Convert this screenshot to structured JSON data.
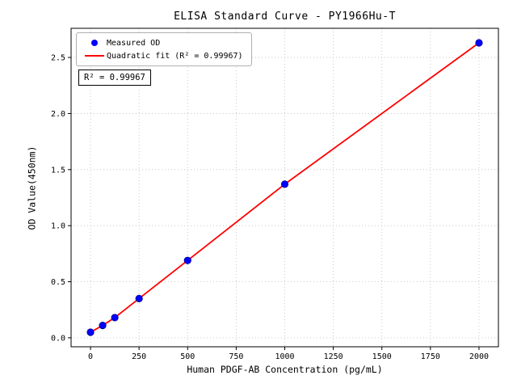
{
  "figure": {
    "title": "ELISA Standard Curve - PY1966Hu-T",
    "xlabel": "Human PDGF-AB Concentration (pg/mL)",
    "ylabel": "OD Value(450nm)",
    "legend": {
      "measured": "Measured OD",
      "fit": "Quadratic fit (R² = 0.99967)"
    },
    "annotation": "R² = 0.99967",
    "colors": {
      "point": "#0000ff",
      "point_edge": "#00008b",
      "line": "#ff0000",
      "grid": "#bdbdbd",
      "axis": "#000000"
    }
  },
  "chart_data": {
    "type": "scatter",
    "title": "ELISA Standard Curve - PY1966Hu-T",
    "xlabel": "Human PDGF-AB Concentration (pg/mL)",
    "ylabel": "OD Value(450nm)",
    "x": [
      0,
      62.5,
      125,
      250,
      500,
      1000,
      2000
    ],
    "y": [
      0.05,
      0.11,
      0.18,
      0.35,
      0.69,
      1.37,
      2.63
    ],
    "series": [
      {
        "name": "Measured OD",
        "type": "scatter",
        "color": "#0000ff"
      },
      {
        "name": "Quadratic fit (R² = 0.99967)",
        "type": "line",
        "color": "#ff0000"
      }
    ],
    "r_squared": 0.99967,
    "xticks": [
      0,
      250,
      500,
      750,
      1000,
      1250,
      1500,
      1750,
      2000
    ],
    "yticks": [
      0.0,
      0.5,
      1.0,
      1.5,
      2.0,
      2.5
    ],
    "xlim": [
      -100,
      2100
    ],
    "ylim": [
      -0.08,
      2.76
    ],
    "grid": true,
    "legend_position": "upper left"
  }
}
